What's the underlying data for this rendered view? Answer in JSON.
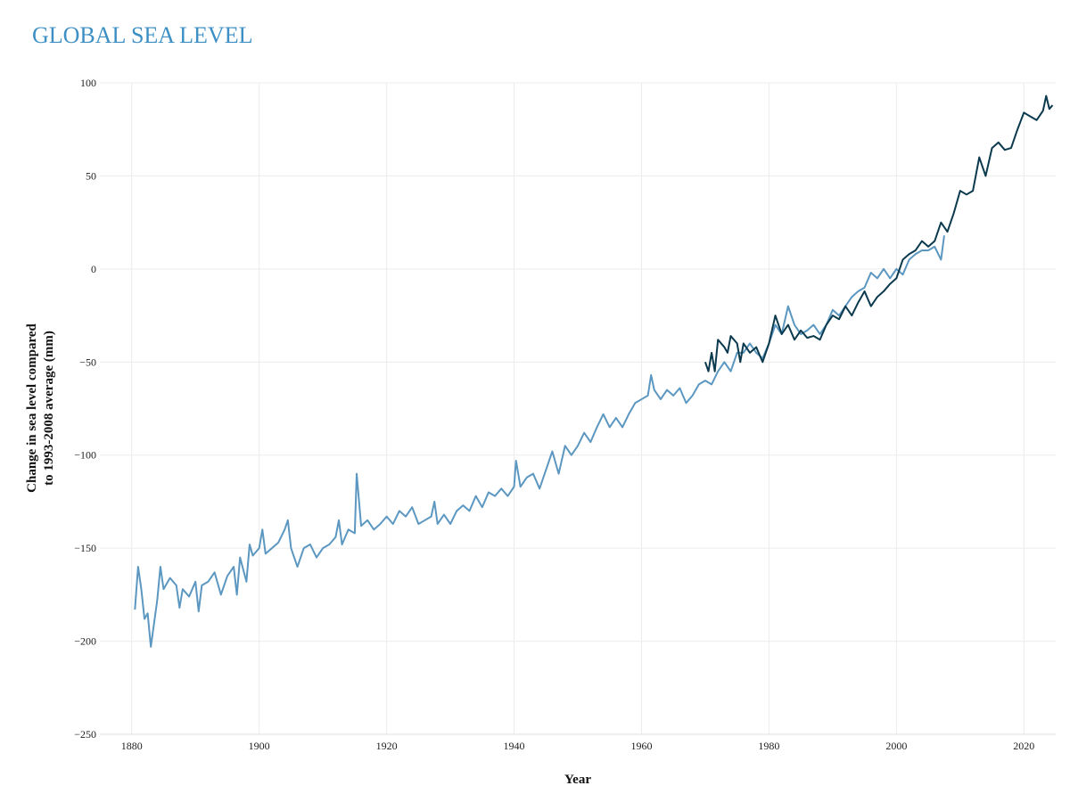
{
  "chart_data": {
    "type": "line",
    "title": "GLOBAL SEA LEVEL",
    "x_label": "Year",
    "y_label": [
      "Change in sea level compared",
      "to 1993-2008 average (mm)"
    ],
    "xlim": [
      1875,
      2025
    ],
    "xticks": [
      1880,
      1900,
      1920,
      1940,
      1960,
      1980,
      2000,
      2020
    ],
    "ylim": [
      -250,
      100
    ],
    "yticks": [
      {
        "value": -250,
        "label": "−250"
      },
      {
        "value": -200,
        "label": "−200"
      },
      {
        "value": -150,
        "label": "−150"
      },
      {
        "value": -100,
        "label": "−100"
      },
      {
        "value": -50,
        "label": "−50"
      },
      0,
      50,
      100
    ],
    "grid": true,
    "series": [
      {
        "color": "#5b97c0",
        "x": [
          1880.5,
          1881,
          1881.5,
          1882,
          1882.5,
          1883,
          1884,
          1884.5,
          1885,
          1886,
          1887,
          1887.5,
          1888,
          1889,
          1890,
          1890.5,
          1891,
          1892,
          1893,
          1894,
          1895,
          1896,
          1896.5,
          1897,
          1898,
          1898.5,
          1899,
          1900,
          1900.5,
          1901,
          1902,
          1903,
          1904,
          1904.5,
          1905,
          1906,
          1907,
          1908,
          1909,
          1910,
          1911,
          1912,
          1912.5,
          1913,
          1914,
          1915,
          1915.3,
          1916,
          1917,
          1918,
          1919,
          1920,
          1921,
          1922,
          1923,
          1924,
          1925,
          1926,
          1927,
          1927.5,
          1928,
          1929,
          1930,
          1931,
          1932,
          1933,
          1934,
          1935,
          1936,
          1937,
          1938,
          1939,
          1940,
          1940.3,
          1941,
          1942,
          1943,
          1944,
          1945,
          1946,
          1947,
          1948,
          1949,
          1950,
          1951,
          1952,
          1953,
          1954,
          1955,
          1956,
          1957,
          1958,
          1959,
          1960,
          1961,
          1961.5,
          1962,
          1963,
          1964,
          1965,
          1966,
          1967,
          1968,
          1969,
          1970,
          1971,
          1972,
          1973,
          1974,
          1975,
          1976,
          1977,
          1978,
          1979,
          1980,
          1981,
          1982,
          1983,
          1984,
          1985,
          1986,
          1987,
          1988,
          1989,
          1990,
          1991,
          1992,
          1993,
          1994,
          1995,
          1996,
          1997,
          1998,
          1999,
          2000,
          2001,
          2002,
          2003,
          2004,
          2005,
          2006,
          2007,
          2007.5
        ],
        "values": [
          -183,
          -160,
          -172,
          -188,
          -185,
          -203,
          -178,
          -160,
          -172,
          -166,
          -170,
          -182,
          -172,
          -176,
          -168,
          -184,
          -170,
          -168,
          -163,
          -175,
          -165,
          -160,
          -175,
          -155,
          -168,
          -148,
          -154,
          -150,
          -140,
          -153,
          -150,
          -147,
          -140,
          -135,
          -150,
          -160,
          -150,
          -148,
          -155,
          -150,
          -148,
          -144,
          -135,
          -148,
          -140,
          -142,
          -110,
          -138,
          -135,
          -140,
          -137,
          -133,
          -137,
          -130,
          -133,
          -128,
          -137,
          -135,
          -133,
          -125,
          -137,
          -132,
          -137,
          -130,
          -127,
          -130,
          -122,
          -128,
          -120,
          -122,
          -118,
          -122,
          -117,
          -103,
          -117,
          -112,
          -110,
          -118,
          -108,
          -98,
          -110,
          -95,
          -100,
          -95,
          -88,
          -93,
          -85,
          -78,
          -85,
          -80,
          -85,
          -78,
          -72,
          -70,
          -68,
          -57,
          -65,
          -70,
          -65,
          -68,
          -64,
          -72,
          -68,
          -62,
          -60,
          -62,
          -55,
          -50,
          -55,
          -45,
          -45,
          -40,
          -45,
          -48,
          -40,
          -30,
          -35,
          -20,
          -30,
          -35,
          -33,
          -30,
          -35,
          -30,
          -22,
          -25,
          -20,
          -15,
          -12,
          -10,
          -2,
          -5,
          0,
          -5,
          0,
          -3,
          5,
          8,
          10,
          10,
          12,
          5,
          18
        ]
      },
      {
        "color": "#0b3a4e",
        "x": [
          1970,
          1970.5,
          1971,
          1971.5,
          1972,
          1973,
          1973.5,
          1974,
          1975,
          1975.5,
          1976,
          1977,
          1978,
          1979,
          1980,
          1981,
          1982,
          1983,
          1984,
          1985,
          1986,
          1987,
          1988,
          1989,
          1990,
          1991,
          1992,
          1993,
          1994,
          1995,
          1996,
          1997,
          1998,
          1999,
          2000,
          2001,
          2002,
          2003,
          2004,
          2005,
          2006,
          2007,
          2008,
          2009,
          2010,
          2011,
          2012,
          2013,
          2014,
          2015,
          2016,
          2017,
          2018,
          2019,
          2020,
          2021,
          2022,
          2023,
          2023.5,
          2024,
          2024.5
        ],
        "values": [
          -50,
          -55,
          -45,
          -55,
          -38,
          -42,
          -45,
          -36,
          -40,
          -50,
          -40,
          -45,
          -42,
          -50,
          -40,
          -25,
          -35,
          -30,
          -38,
          -33,
          -37,
          -36,
          -38,
          -30,
          -25,
          -27,
          -20,
          -25,
          -18,
          -12,
          -20,
          -15,
          -12,
          -8,
          -5,
          5,
          8,
          10,
          15,
          12,
          15,
          25,
          20,
          30,
          42,
          40,
          42,
          60,
          50,
          65,
          68,
          64,
          65,
          75,
          84,
          82,
          80,
          85,
          93,
          86,
          88
        ]
      }
    ]
  }
}
